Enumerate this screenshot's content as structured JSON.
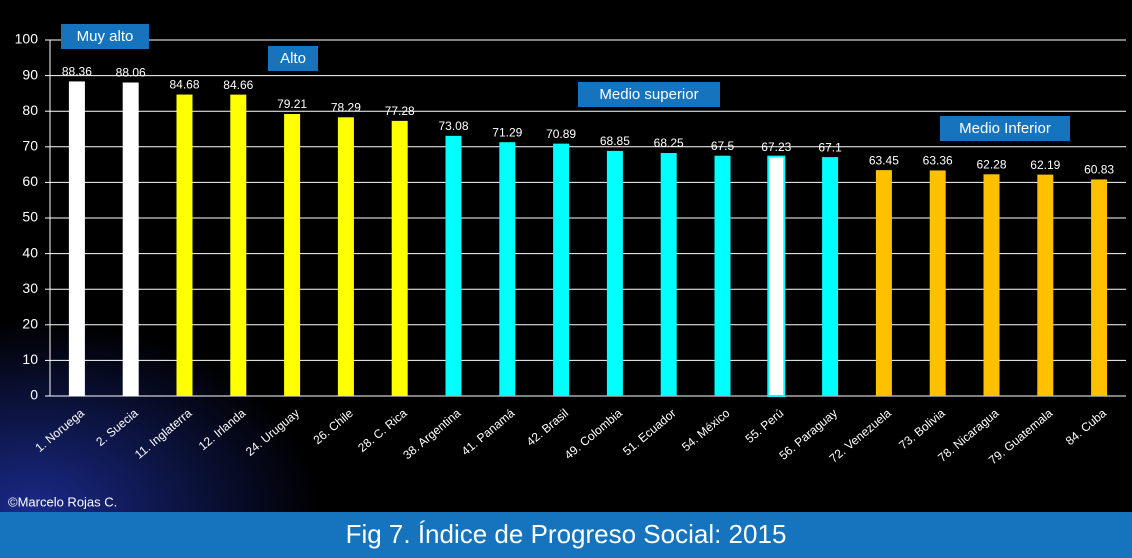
{
  "chart_data": {
    "type": "bar",
    "title": "Fig 7. Índice de Progreso Social: 2015",
    "credit": "©Marcelo Rojas C.",
    "categories": [
      "1. Noruega",
      "2. Suecia",
      "11. Inglaterra",
      "12. Irlanda",
      "24. Uruguay",
      "26. Chile",
      "28. C. Rica",
      "38. Argentina",
      "41. Panamá",
      "42. Brasil",
      "49. Colombia",
      "51. Ecuador",
      "54. México",
      "55. Perú",
      "56. Paraguay",
      "72. Venezuela",
      "73. Bolivia",
      "78. Nicaragua",
      "79. Guatemala",
      "84. Cuba"
    ],
    "values": [
      88.36,
      88.06,
      84.68,
      84.66,
      79.21,
      78.29,
      77.28,
      73.08,
      71.29,
      70.89,
      68.85,
      68.25,
      67.5,
      67.23,
      67.1,
      63.45,
      63.36,
      62.28,
      62.19,
      60.83
    ],
    "colors": [
      "#ffffff",
      "#ffffff",
      "#ffff00",
      "#ffff00",
      "#ffff00",
      "#ffff00",
      "#ffff00",
      "#00ffff",
      "#00ffff",
      "#00ffff",
      "#00ffff",
      "#00ffff",
      "#00ffff",
      "#ffffff",
      "#00ffff",
      "#ffc000",
      "#ffc000",
      "#ffc000",
      "#ffc000",
      "#ffc000"
    ],
    "annotations": [
      "Muy alto",
      "Alto",
      "Medio superior",
      "Medio Inferior"
    ],
    "ylim": [
      0,
      100
    ],
    "yticks": [
      0,
      10,
      20,
      30,
      40,
      50,
      60,
      70,
      80,
      90,
      100
    ],
    "grid": true
  }
}
